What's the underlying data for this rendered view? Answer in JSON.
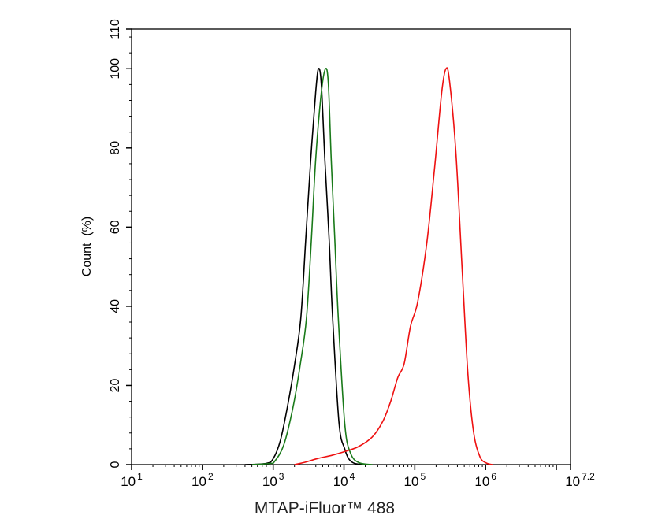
{
  "chart_data": {
    "type": "line",
    "title": "",
    "xlabel": "MTAP-iFluor™ 488",
    "ylabel": "Count  (%)",
    "x_scale": "log10",
    "xlim_log10": [
      1,
      7.2
    ],
    "ylim": [
      0,
      110
    ],
    "x_tick_labels": [
      {
        "base": "10",
        "exp": "1",
        "log": 1
      },
      {
        "base": "10",
        "exp": "2",
        "log": 2
      },
      {
        "base": "10",
        "exp": "3",
        "log": 3
      },
      {
        "base": "10",
        "exp": "4",
        "log": 4
      },
      {
        "base": "10",
        "exp": "5",
        "log": 5
      },
      {
        "base": "10",
        "exp": "6",
        "log": 6
      },
      {
        "base": "10",
        "exp": "7.2",
        "log": 7.2
      }
    ],
    "y_ticks": [
      0,
      20,
      40,
      60,
      80,
      100,
      110
    ],
    "grid": false,
    "legend": "none",
    "series": [
      {
        "color": "#000000",
        "points_log10x_y": [
          [
            2.6,
            0
          ],
          [
            2.9,
            0.3
          ],
          [
            3.0,
            1.5
          ],
          [
            3.1,
            6
          ],
          [
            3.2,
            14.5
          ],
          [
            3.3,
            25
          ],
          [
            3.39,
            37
          ],
          [
            3.46,
            57
          ],
          [
            3.53,
            77
          ],
          [
            3.6,
            94
          ],
          [
            3.64,
            100
          ],
          [
            3.68,
            96
          ],
          [
            3.73,
            77
          ],
          [
            3.79,
            57
          ],
          [
            3.84,
            37
          ],
          [
            3.93,
            10.5
          ],
          [
            4.01,
            4
          ],
          [
            4.07,
            1.4
          ],
          [
            4.15,
            0.3
          ],
          [
            4.3,
            0
          ]
        ]
      },
      {
        "color": "#1a7a1a",
        "points_log10x_y": [
          [
            2.7,
            0
          ],
          [
            2.95,
            0.3
          ],
          [
            3.02,
            0.8
          ],
          [
            3.15,
            5
          ],
          [
            3.28,
            14.5
          ],
          [
            3.38,
            25
          ],
          [
            3.47,
            37
          ],
          [
            3.54,
            57
          ],
          [
            3.6,
            77
          ],
          [
            3.68,
            94
          ],
          [
            3.74,
            100
          ],
          [
            3.78,
            96
          ],
          [
            3.82,
            77
          ],
          [
            3.87,
            57
          ],
          [
            3.92,
            37
          ],
          [
            4.01,
            10.5
          ],
          [
            4.09,
            3
          ],
          [
            4.21,
            0.5
          ],
          [
            4.4,
            0
          ]
        ]
      },
      {
        "color": "#ee1111",
        "points_log10x_y": [
          [
            3.3,
            0
          ],
          [
            3.45,
            0.6
          ],
          [
            3.62,
            1.5
          ],
          [
            3.84,
            2.4
          ],
          [
            4.03,
            3.4
          ],
          [
            4.21,
            4.6
          ],
          [
            4.4,
            7
          ],
          [
            4.55,
            11
          ],
          [
            4.66,
            16
          ],
          [
            4.76,
            22
          ],
          [
            4.85,
            25.5
          ],
          [
            4.94,
            35
          ],
          [
            5.04,
            41
          ],
          [
            5.17,
            56
          ],
          [
            5.28,
            75
          ],
          [
            5.38,
            94
          ],
          [
            5.44,
            100
          ],
          [
            5.49,
            97
          ],
          [
            5.58,
            79
          ],
          [
            5.67,
            49
          ],
          [
            5.75,
            23
          ],
          [
            5.83,
            8.3
          ],
          [
            5.92,
            2
          ],
          [
            6.01,
            0.4
          ],
          [
            6.1,
            0
          ]
        ]
      }
    ]
  }
}
